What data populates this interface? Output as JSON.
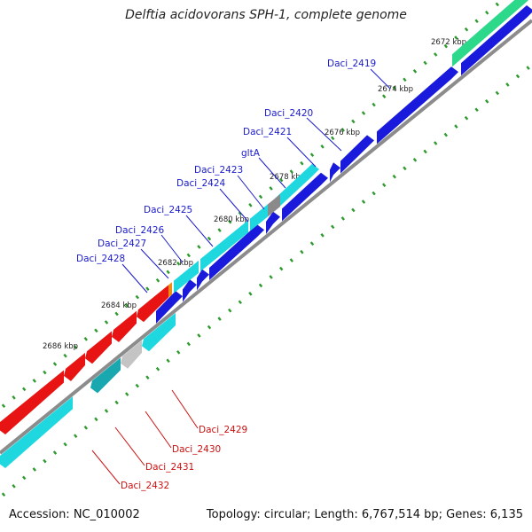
{
  "title": "Delftia acidovorans SPH-1, complete genome",
  "footer": {
    "accession": "Accession: NC_010002",
    "stats": "Topology: circular; Length: 6,767,514 bp; Genes: 6,135"
  },
  "colors": {
    "forward_cds": "#1a1adc",
    "forward_feature": "#1fd8df",
    "reverse_cds": "#e81414",
    "reverse_feature": "#1fd8df",
    "highlight_green": "#2cd88a",
    "orange": "#f08c10",
    "gray_feature": "#8a8a8a",
    "backbone": "#8c8c8c",
    "tick": "#2e9a2e",
    "label_forward": "#1a1acc",
    "label_reverse": "#cc1111"
  },
  "scale": {
    "unit": "kbp",
    "ticks": [
      "2672 kbp",
      "2674 kbp",
      "2676 kbp",
      "2678 kbp",
      "2680 kbp",
      "2682 kbp",
      "2684 kbp",
      "2686 kbp"
    ]
  },
  "genes": {
    "forward": [
      "Daci_2419",
      "Daci_2420",
      "Daci_2421",
      "gltA",
      "Daci_2423",
      "Daci_2424",
      "Daci_2425",
      "Daci_2426",
      "Daci_2427",
      "Daci_2428"
    ],
    "reverse": [
      "Daci_2429",
      "Daci_2430",
      "Daci_2431",
      "Daci_2432"
    ]
  }
}
